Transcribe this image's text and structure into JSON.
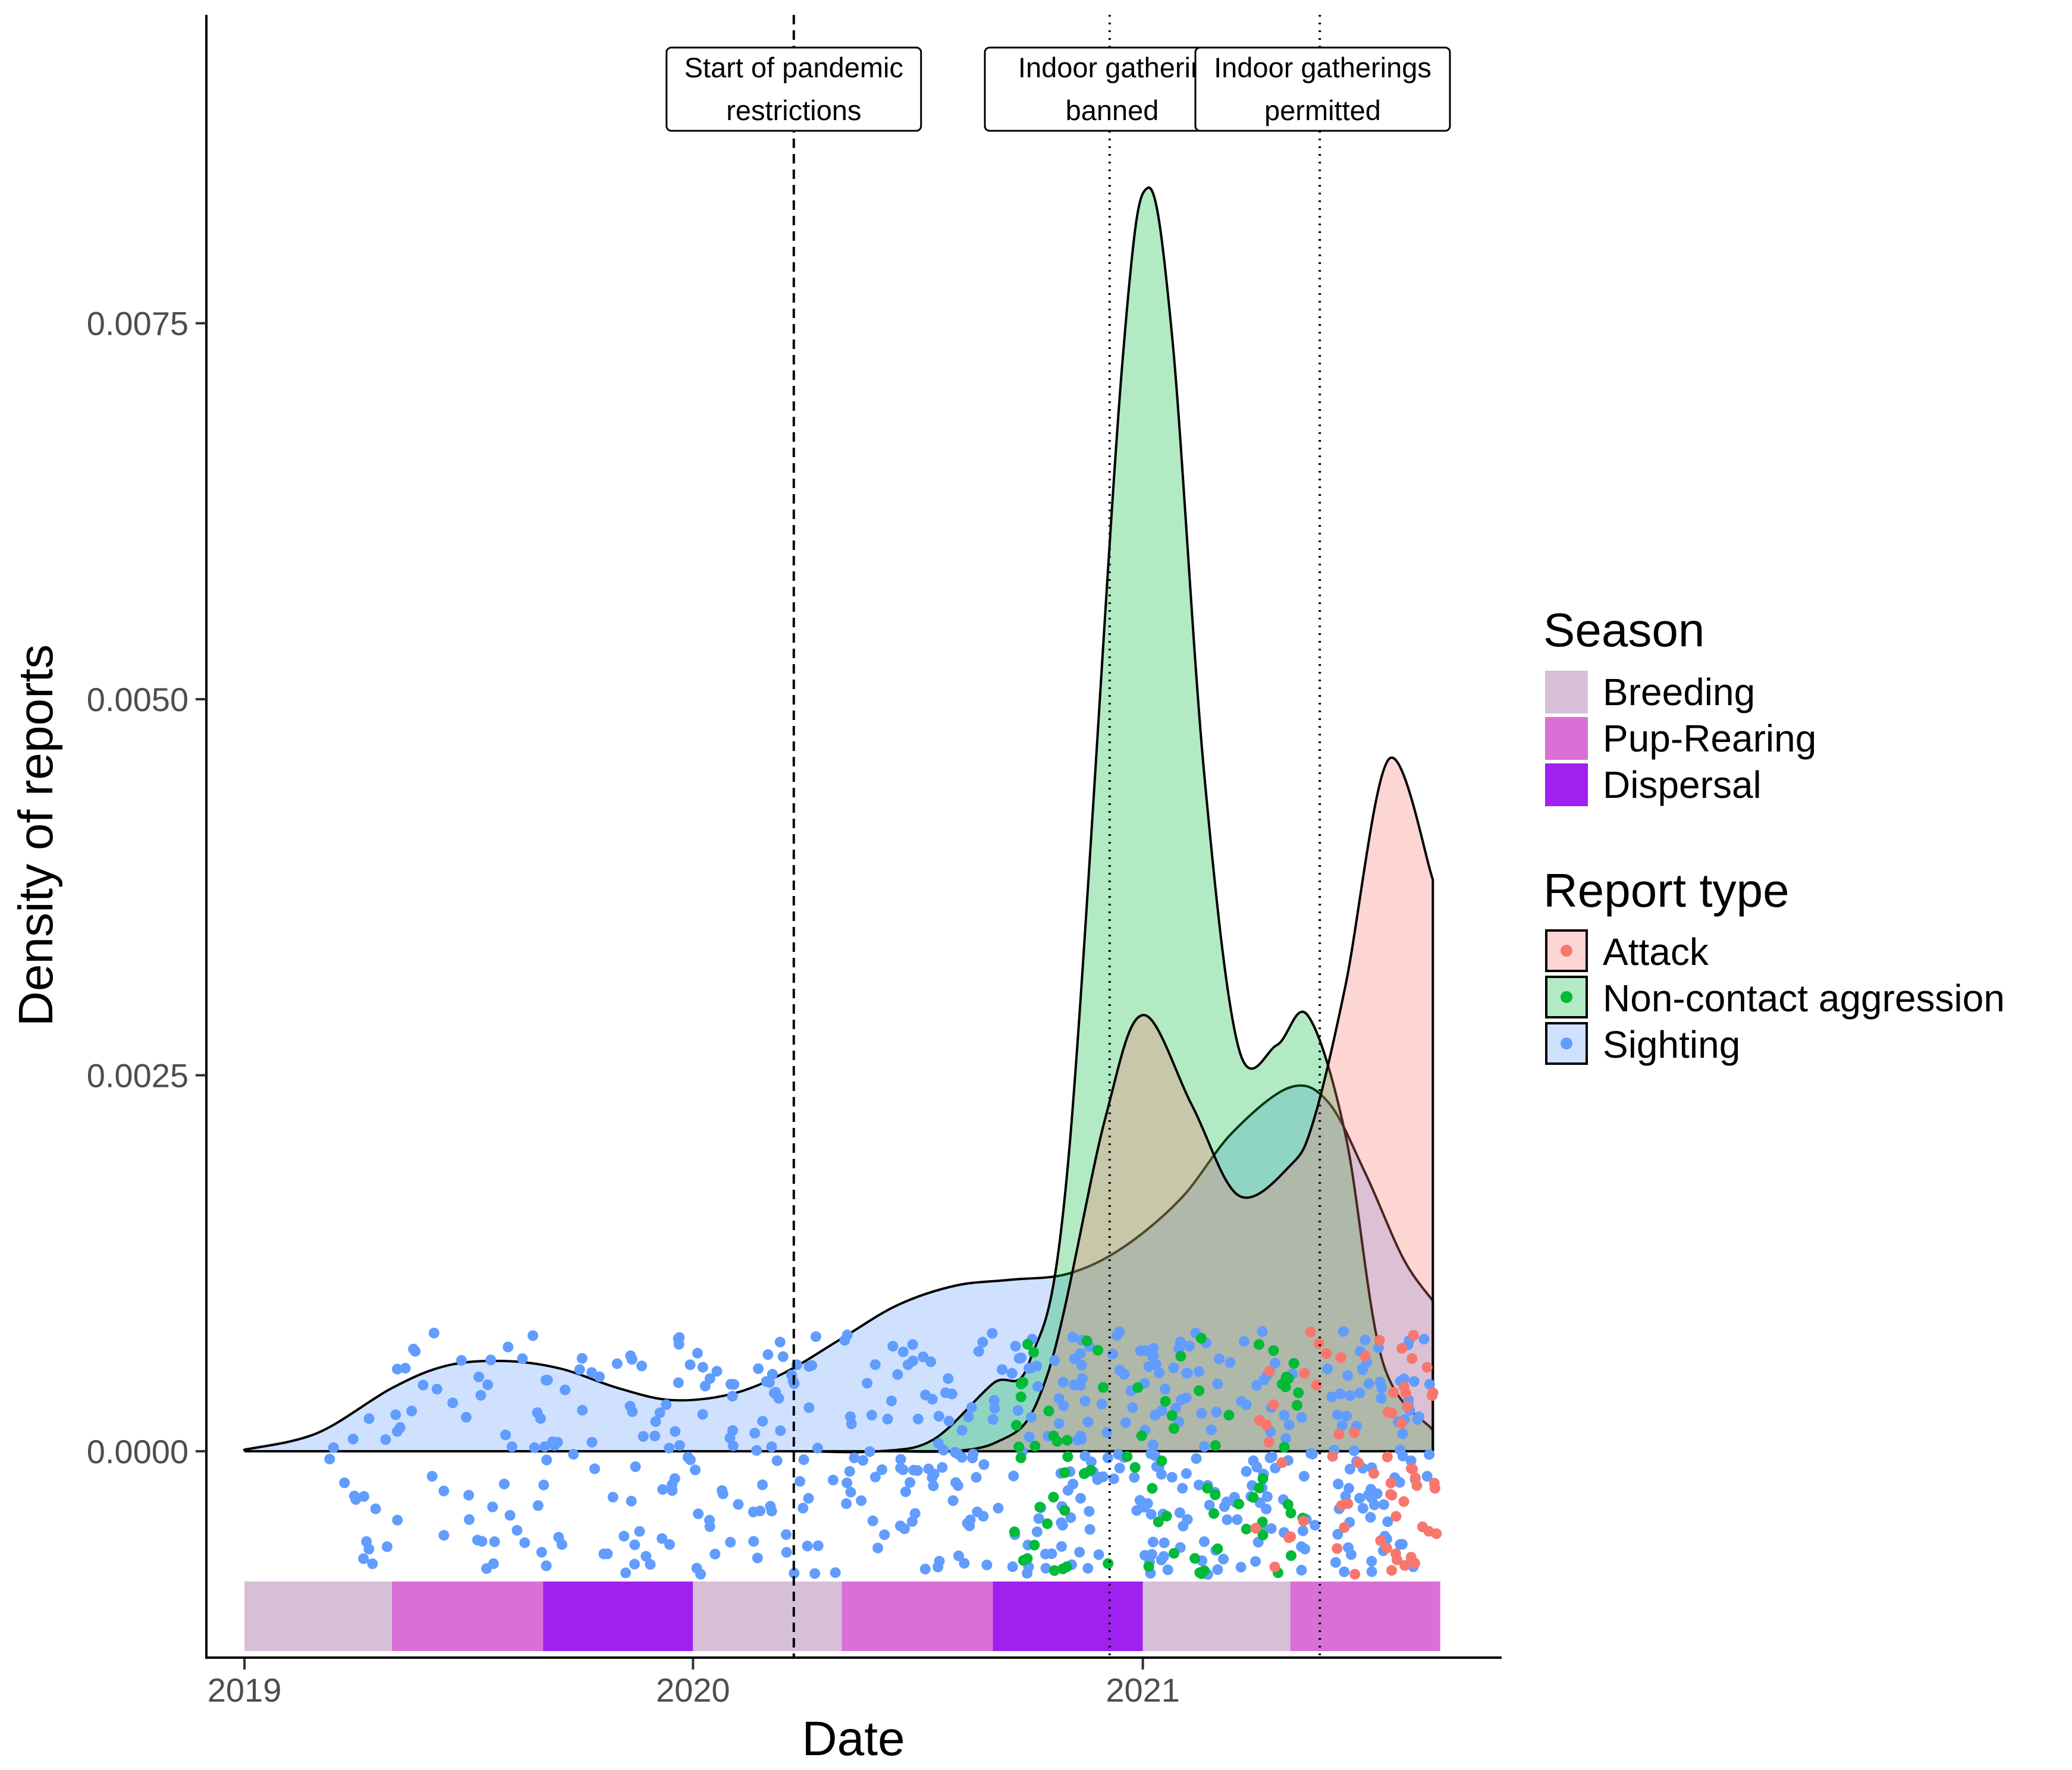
{
  "chart_data": {
    "type": "area",
    "xlabel": "Date",
    "ylabel": "Density of reports",
    "x_ticks": [
      "2019",
      "2020",
      "2021"
    ],
    "y_ticks": [
      "0.0000",
      "0.0025",
      "0.0050",
      "0.0075"
    ],
    "xlim": [
      "2018-12-01",
      "2021-10-20"
    ],
    "ylim": [
      -0.00138,
      0.00955
    ],
    "grid": false,
    "legend_position": "right",
    "series": [
      {
        "name": "Sighting",
        "color": "#619CFF",
        "points": [
          [
            "2019-01-01",
            1e-05
          ],
          [
            "2019-03-01",
            0.00012
          ],
          [
            "2019-05-01",
            0.00042
          ],
          [
            "2019-06-15",
            0.00057
          ],
          [
            "2019-08-01",
            0.0006
          ],
          [
            "2019-09-15",
            0.00055
          ],
          [
            "2019-11-01",
            0.00042
          ],
          [
            "2019-12-15",
            0.00034
          ],
          [
            "2020-02-01",
            0.00038
          ],
          [
            "2020-03-15",
            0.00052
          ],
          [
            "2020-05-01",
            0.00075
          ],
          [
            "2020-06-15",
            0.00097
          ],
          [
            "2020-08-01",
            0.0011
          ],
          [
            "2020-09-15",
            0.00114
          ],
          [
            "2020-11-01",
            0.00118
          ],
          [
            "2020-12-15",
            0.00135
          ],
          [
            "2021-02-01",
            0.00168
          ],
          [
            "2021-03-15",
            0.00212
          ],
          [
            "2021-05-01",
            0.00242
          ],
          [
            "2021-06-01",
            0.00232
          ],
          [
            "2021-07-01",
            0.00185
          ],
          [
            "2021-08-01",
            0.00128
          ],
          [
            "2021-08-25",
            0.001
          ]
        ]
      },
      {
        "name": "Non-contact aggression",
        "color": "#00BA38",
        "points": [
          [
            "2020-04-01",
            0.0
          ],
          [
            "2020-06-01",
            0.0
          ],
          [
            "2020-07-15",
            8e-05
          ],
          [
            "2020-09-01",
            0.00045
          ],
          [
            "2020-10-01",
            0.0006
          ],
          [
            "2020-11-01",
            0.0019
          ],
          [
            "2020-12-15",
            0.0072
          ],
          [
            "2021-01-05",
            0.0084
          ],
          [
            "2021-01-25",
            0.0074
          ],
          [
            "2021-02-20",
            0.0045
          ],
          [
            "2021-03-20",
            0.00268
          ],
          [
            "2021-04-20",
            0.0027
          ],
          [
            "2021-05-15",
            0.0029
          ],
          [
            "2021-06-15",
            0.0021
          ],
          [
            "2021-07-15",
            0.0006
          ],
          [
            "2021-08-25",
            0.00014
          ]
        ]
      },
      {
        "name": "Attack",
        "color": "#F8766D",
        "points": [
          [
            "2020-06-01",
            0.0
          ],
          [
            "2020-09-01",
            5e-05
          ],
          [
            "2020-10-15",
            0.0005
          ],
          [
            "2020-12-01",
            0.0022
          ],
          [
            "2021-01-01",
            0.0029
          ],
          [
            "2021-02-10",
            0.0023
          ],
          [
            "2021-03-20",
            0.0017
          ],
          [
            "2021-05-01",
            0.0019
          ],
          [
            "2021-05-20",
            0.0022
          ],
          [
            "2021-06-15",
            0.0031
          ],
          [
            "2021-07-20",
            0.0046
          ],
          [
            "2021-08-25",
            0.0038
          ]
        ]
      }
    ],
    "seasons": [
      {
        "name": "Breeding",
        "color": "#D8BFD8",
        "from": "2019-01-01",
        "to": "2019-05-01"
      },
      {
        "name": "Pup-Rearing",
        "color": "#DA70D6",
        "from": "2019-05-01",
        "to": "2019-09-01"
      },
      {
        "name": "Dispersal",
        "color": "#A020F0",
        "from": "2019-09-01",
        "to": "2020-01-01"
      },
      {
        "name": "Breeding",
        "color": "#D8BFD8",
        "from": "2020-01-01",
        "to": "2020-05-01"
      },
      {
        "name": "Pup-Rearing",
        "color": "#DA70D6",
        "from": "2020-05-01",
        "to": "2020-09-01"
      },
      {
        "name": "Dispersal",
        "color": "#A020F0",
        "from": "2020-09-01",
        "to": "2021-01-01"
      },
      {
        "name": "Breeding",
        "color": "#D8BFD8",
        "from": "2021-01-01",
        "to": "2021-05-01"
      },
      {
        "name": "Pup-Rearing",
        "color": "#DA70D6",
        "from": "2021-05-01",
        "to": "2021-08-31"
      }
    ],
    "annotations": [
      {
        "date": "2020-03-23",
        "lines": [
          "Start of pandemic",
          "restrictions"
        ],
        "linestyle": "dashed"
      },
      {
        "date": "2020-12-05",
        "lines": [
          "Indoor gatherin",
          "banned"
        ],
        "linestyle": "dotted"
      },
      {
        "date": "2021-05-25",
        "lines": [
          "Indoor gatherings",
          "permitted"
        ],
        "linestyle": "dotted"
      }
    ],
    "legend": {
      "season_title": "Season",
      "season_items": [
        {
          "label": "Breeding",
          "color": "#D8BFD8"
        },
        {
          "label": "Pup-Rearing",
          "color": "#DA70D6"
        },
        {
          "label": "Dispersal",
          "color": "#A020F0"
        }
      ],
      "report_title": "Report type",
      "report_items": [
        {
          "label": "Attack",
          "color": "#F8766D"
        },
        {
          "label": "Non-contact aggression",
          "color": "#00BA38"
        },
        {
          "label": "Sighting",
          "color": "#619CFF"
        }
      ]
    },
    "points_summary": {
      "Sighting": 560,
      "Non-contact aggression": 80,
      "Attack": 65
    }
  }
}
